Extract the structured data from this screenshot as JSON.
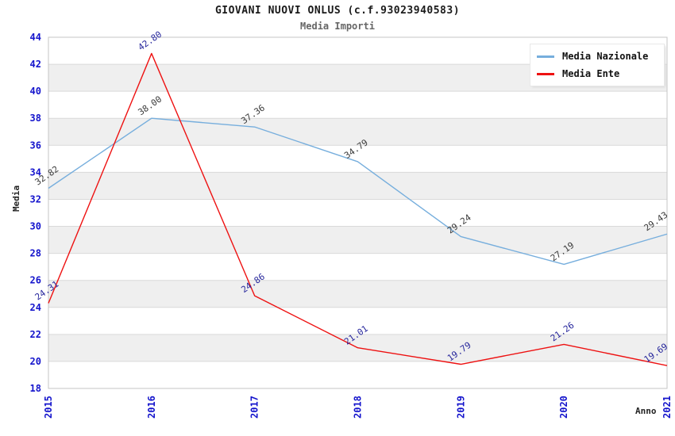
{
  "title": "GIOVANI NUOVI ONLUS (c.f.93023940583)",
  "subtitle": "Media Importi",
  "colors": {
    "series_nazionale": "#76aedd",
    "series_ente": "#ee1111",
    "tick_label_blue": "#1414cc",
    "label_blue_series": "#3a3a3a",
    "label_red_series": "#26269c",
    "band_fill": "#efefef",
    "gridline": "#d9d9d9",
    "plot_border": "#c6c6c6",
    "background": "#ffffff"
  },
  "legend": {
    "items": [
      {
        "label": "Media Nazionale"
      },
      {
        "label": "Media Ente"
      }
    ]
  },
  "chart_data": {
    "type": "line",
    "title": "GIOVANI NUOVI ONLUS (c.f.93023940583)",
    "subtitle": "Media Importi",
    "xlabel": "Anno",
    "ylabel": "Media",
    "x": [
      2015,
      2016,
      2017,
      2018,
      2019,
      2020,
      2021
    ],
    "ylim": [
      18,
      44
    ],
    "ytick_step": 2,
    "grid": "horizontal-bands",
    "legend_position": "top-right",
    "series": [
      {
        "name": "Media Nazionale",
        "color": "#76aedd",
        "label_color": "#3a3a3a",
        "values": [
          32.82,
          38.0,
          37.36,
          34.79,
          29.24,
          27.19,
          29.43
        ]
      },
      {
        "name": "Media Ente",
        "color": "#ee1111",
        "label_color": "#26269c",
        "values": [
          24.31,
          42.8,
          24.86,
          21.01,
          19.79,
          21.26,
          19.69
        ]
      }
    ]
  }
}
